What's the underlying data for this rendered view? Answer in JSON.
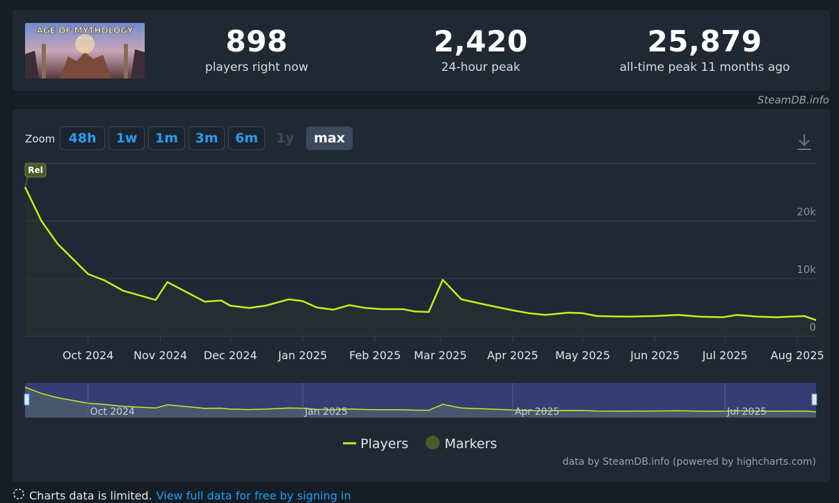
{
  "game": {
    "art_title": "AGE OF MYTHOLOGY",
    "art_subtitle": "RETOLD"
  },
  "stats": [
    {
      "value": "898",
      "label": "players right now"
    },
    {
      "value": "2,420",
      "label": "24-hour peak"
    },
    {
      "value": "25,879",
      "label": "all-time peak 11 months ago"
    }
  ],
  "credit_top": "SteamDB.info",
  "zoom": {
    "label": "Zoom",
    "buttons": [
      {
        "label": "48h",
        "state": "normal"
      },
      {
        "label": "1w",
        "state": "normal"
      },
      {
        "label": "1m",
        "state": "normal"
      },
      {
        "label": "3m",
        "state": "normal"
      },
      {
        "label": "6m",
        "state": "normal"
      },
      {
        "label": "1y",
        "state": "disabled"
      },
      {
        "label": "max",
        "state": "active"
      }
    ]
  },
  "colors": {
    "line": "#c6f01f",
    "marker": "#4a5a2a",
    "navigator_bg": "#363d72",
    "grid": "#3a4350"
  },
  "chart_data": {
    "type": "line",
    "title": "",
    "xlabel": "",
    "ylabel": "",
    "ylim": [
      0,
      30000
    ],
    "yticks": [
      0,
      10000,
      20000
    ],
    "ytick_labels": [
      "0",
      "10k",
      "20k"
    ],
    "xlim": [
      "2024-09-04",
      "2025-08-09"
    ],
    "xticks": [
      "2024-10-01",
      "2024-11-01",
      "2024-12-01",
      "2025-01-01",
      "2025-02-01",
      "2025-03-01",
      "2025-04-01",
      "2025-05-01",
      "2025-06-01",
      "2025-07-01",
      "2025-08-01"
    ],
    "xtick_labels": [
      "Oct 2024",
      "Nov 2024",
      "Dec 2024",
      "Jan 2025",
      "Feb 2025",
      "Mar 2025",
      "Apr 2025",
      "May 2025",
      "Jun 2025",
      "Jul 2025",
      "Aug 2025"
    ],
    "navigator_labels": [
      "Oct 2024",
      "Jan 2025",
      "Apr 2025",
      "Jul 2025"
    ],
    "navigator_ticks": [
      "2024-10-01",
      "2025-01-01",
      "2025-04-01",
      "2025-07-01"
    ],
    "series": [
      {
        "name": "Players",
        "x": [
          "2024-09-04",
          "2024-09-11",
          "2024-09-18",
          "2024-10-01",
          "2024-10-08",
          "2024-10-16",
          "2024-10-30",
          "2024-11-04",
          "2024-11-20",
          "2024-11-27",
          "2024-12-01",
          "2024-12-09",
          "2024-12-16",
          "2024-12-26",
          "2025-01-01",
          "2025-01-07",
          "2025-01-14",
          "2025-01-21",
          "2025-01-28",
          "2025-02-04",
          "2025-02-13",
          "2025-02-18",
          "2025-02-24",
          "2025-03-02",
          "2025-03-10",
          "2025-03-19",
          "2025-03-26",
          "2025-04-01",
          "2025-04-08",
          "2025-04-15",
          "2025-04-25",
          "2025-05-01",
          "2025-05-07",
          "2025-05-20",
          "2025-06-01",
          "2025-06-11",
          "2025-06-20",
          "2025-06-30",
          "2025-07-06",
          "2025-07-15",
          "2025-07-23",
          "2025-08-04",
          "2025-08-09"
        ],
        "values": [
          25879,
          20000,
          16000,
          10800,
          9700,
          7900,
          6300,
          9400,
          6000,
          6200,
          5300,
          4900,
          5300,
          6400,
          6100,
          5000,
          4600,
          5400,
          4900,
          4700,
          4700,
          4300,
          4200,
          9800,
          6400,
          5600,
          5000,
          4500,
          4000,
          3700,
          4100,
          4000,
          3500,
          3400,
          3500,
          3700,
          3400,
          3300,
          3700,
          3400,
          3300,
          3500,
          2800
        ]
      }
    ],
    "markers": [
      {
        "label": "Rel",
        "x": "2024-09-04"
      }
    ],
    "legend": {
      "placement": "bottom-center",
      "items": [
        "Players",
        "Markers"
      ]
    }
  },
  "footer_credit": "data by SteamDB.info (powered by highcharts.com)",
  "limited": {
    "text": "Charts data is limited.",
    "link": "View full data for free by signing in"
  }
}
